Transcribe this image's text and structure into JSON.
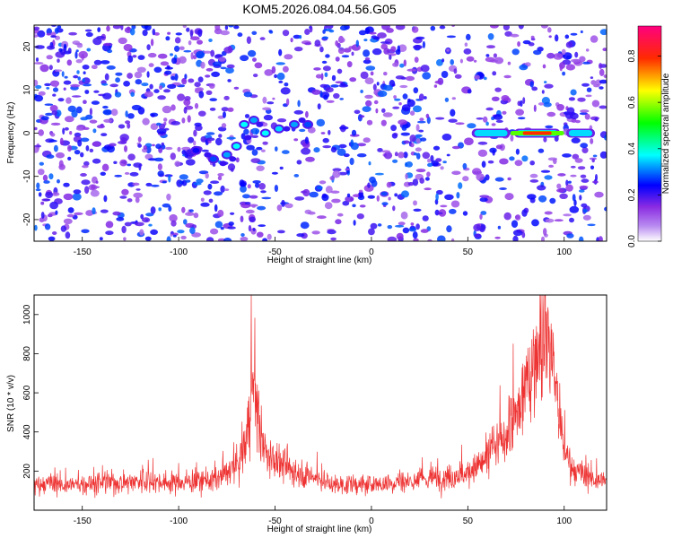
{
  "title": "KOM5.2026.084.04.56.G05",
  "chart_data": [
    {
      "type": "heatmap",
      "title": "KOM5.2026.084.04.56.G05",
      "xlabel": "Height of straight line (km)",
      "ylabel": "Frequency (Hz)",
      "xlim": [
        -175,
        122
      ],
      "ylim": [
        -25,
        25
      ],
      "xticks": [
        -150,
        -100,
        -50,
        0,
        50,
        100
      ],
      "yticks": [
        -20,
        -10,
        0,
        10,
        20
      ],
      "colorbar": {
        "label": "Normalized spectral amplitude",
        "range": [
          0,
          0.93
        ],
        "ticks": [
          "0.0",
          "0.2",
          "0.4",
          "0.6",
          "0.8"
        ],
        "tick_values": [
          0,
          0.2,
          0.4,
          0.6,
          0.8
        ],
        "colors": [
          "#ffffff",
          "#8a2be2",
          "#0000ff",
          "#00ffff",
          "#00ff00",
          "#ffff00",
          "#ff0000",
          "#ff00ff"
        ]
      },
      "signal_track": [
        {
          "x": -91,
          "y": -4,
          "amp": 0.25
        },
        {
          "x": -82,
          "y": -6,
          "amp": 0.3
        },
        {
          "x": -75,
          "y": -5,
          "amp": 0.35
        },
        {
          "x": -70,
          "y": -3,
          "amp": 0.4
        },
        {
          "x": -66,
          "y": 2,
          "amp": 0.4
        },
        {
          "x": -61,
          "y": 3,
          "amp": 0.35
        },
        {
          "x": -55,
          "y": 0,
          "amp": 0.4
        },
        {
          "x": -48,
          "y": 1,
          "amp": 0.38
        },
        {
          "x": -40,
          "y": 2,
          "amp": 0.35
        },
        {
          "x": -33,
          "y": 2,
          "amp": 0.3
        }
      ],
      "band_segments": [
        {
          "x1": 52,
          "x2": 72,
          "y": 0,
          "amp": 0.35
        },
        {
          "x1": 74,
          "x2": 98,
          "y": 0,
          "amp": 0.85
        },
        {
          "x1": 101,
          "x2": 116,
          "y": 0,
          "amp": 0.4
        }
      ]
    },
    {
      "type": "line",
      "xlabel": "Height of straight line (km)",
      "ylabel": "SNR (10 * v/v)",
      "xlim": [
        -175,
        122
      ],
      "ylim": [
        0,
        1100
      ],
      "xticks": [
        -150,
        -100,
        -50,
        0,
        50,
        100
      ],
      "yticks": [
        200,
        400,
        600,
        800,
        1000
      ],
      "series": [
        {
          "name": "SNR",
          "color": "#ee3333",
          "x": [
            -175,
            -150,
            -120,
            -100,
            -80,
            -70,
            -65,
            -62,
            -60,
            -58,
            -55,
            -50,
            -40,
            -30,
            -20,
            -10,
            0,
            10,
            20,
            40,
            50,
            60,
            65,
            70,
            75,
            80,
            85,
            88,
            90,
            92,
            95,
            98,
            100,
            105,
            110,
            122
          ],
          "values": [
            130,
            130,
            150,
            140,
            160,
            220,
            350,
            620,
            620,
            400,
            280,
            250,
            200,
            170,
            130,
            130,
            130,
            140,
            150,
            170,
            190,
            260,
            320,
            380,
            470,
            620,
            800,
            880,
            950,
            900,
            700,
            430,
            300,
            200,
            170,
            150
          ]
        }
      ]
    }
  ]
}
